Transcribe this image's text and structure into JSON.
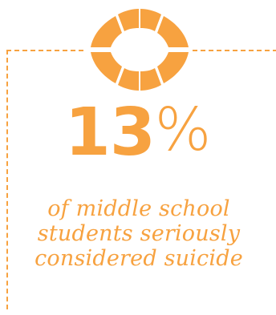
{
  "stat": {
    "value": "13",
    "unit": "%",
    "caption_lines": [
      "of middle school",
      "students seriously",
      "considered suicide"
    ]
  },
  "icon": {
    "name": "life-ring-icon",
    "color": "#f7a240"
  },
  "colors": {
    "accent": "#f7a240",
    "background": "#ffffff"
  }
}
